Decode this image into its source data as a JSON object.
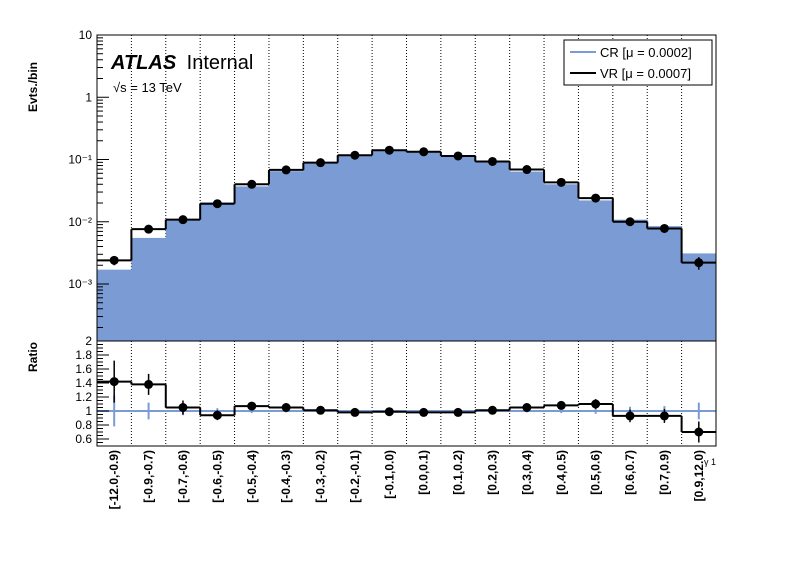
{
  "chart_data": {
    "type": "histogram-ratio",
    "experiment": "ATLAS",
    "experiment_status": "Internal",
    "energy_text": "√s = 13 TeV",
    "upper": {
      "ylabel": "Evts./bin",
      "yscale": "log",
      "yticks": [
        "10⁻³",
        "10⁻²",
        "10⁻¹",
        "1",
        "10"
      ]
    },
    "lower": {
      "ylabel": "Ratio",
      "ylim": [
        0.5,
        2.0
      ],
      "yticks": [
        "0.6",
        "0.8",
        "1",
        "1.2",
        "1.4",
        "1.6",
        "1.8",
        "2"
      ]
    },
    "xlabel": "γ 1",
    "categories": [
      "[-12.0,-0.9)",
      "[-0.9,-0.7)",
      "[-0.7,-0.6)",
      "[-0.6,-0.5)",
      "[-0.5,-0.4)",
      "[-0.4,-0.3)",
      "[-0.3,-0.2)",
      "[-0.2,-0.1)",
      "[-0.1,0.0)",
      "[0.0,0.1)",
      "[0.1,0.2)",
      "[0.2,0.3)",
      "[0.3,0.4)",
      "[0.4,0.5)",
      "[0.5,0.6)",
      "[0.6,0.7)",
      "[0.7,0.9)",
      "[0.9,12.0)"
    ],
    "legend": [
      {
        "label": "CR [μ = 0.0002]",
        "color": "#7a9bd3"
      },
      {
        "label": "VR [μ = 0.0007]",
        "color": "#000000"
      }
    ],
    "series": [
      {
        "name": "CR [μ = 0.0002]",
        "color": "#7a9bd3",
        "values": [
          0.0017,
          0.0055,
          0.0105,
          0.0205,
          0.037,
          0.065,
          0.088,
          0.118,
          0.138,
          0.133,
          0.118,
          0.092,
          0.064,
          0.04,
          0.022,
          0.0108,
          0.0085,
          0.0031
        ]
      },
      {
        "name": "VR [μ = 0.0007]",
        "color": "#000000",
        "values": [
          0.0024,
          0.0076,
          0.0108,
          0.0195,
          0.04,
          0.068,
          0.089,
          0.117,
          0.141,
          0.133,
          0.114,
          0.093,
          0.069,
          0.043,
          0.024,
          0.01,
          0.0078,
          0.0022
        ],
        "errors": [
          0.0004,
          0.0009,
          0.0012,
          0.0018,
          0.003,
          0.004,
          0.005,
          0.006,
          0.006,
          0.006,
          0.006,
          0.005,
          0.004,
          0.003,
          0.0022,
          0.0012,
          0.0011,
          0.0005
        ]
      }
    ],
    "ratio": {
      "values": [
        1.42,
        1.38,
        1.05,
        0.94,
        1.07,
        1.05,
        1.01,
        0.98,
        0.99,
        0.98,
        0.98,
        1.01,
        1.05,
        1.08,
        1.1,
        0.93,
        0.93,
        0.7
      ],
      "errors": [
        0.3,
        0.15,
        0.1,
        0.07,
        0.05,
        0.04,
        0.03,
        0.03,
        0.03,
        0.03,
        0.03,
        0.03,
        0.04,
        0.05,
        0.07,
        0.09,
        0.1,
        0.15
      ],
      "cr_errors": [
        0.22,
        0.12,
        0.06,
        0.04,
        0.03,
        0.02,
        0.02,
        0.015,
        0.015,
        0.015,
        0.015,
        0.02,
        0.02,
        0.03,
        0.04,
        0.06,
        0.07,
        0.12
      ]
    }
  }
}
